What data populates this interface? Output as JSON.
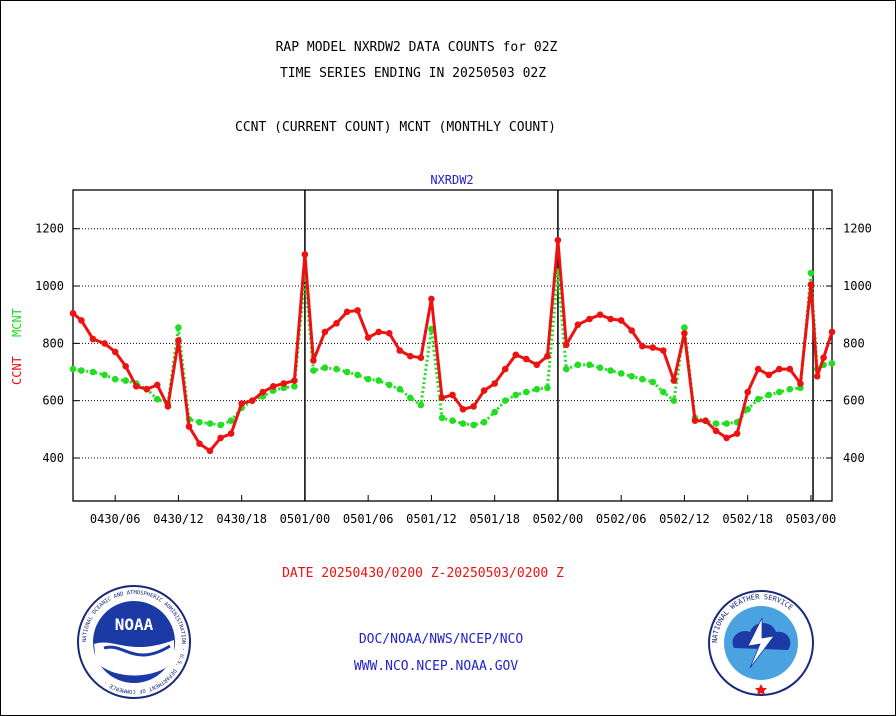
{
  "header": {
    "title_line1": "RAP MODEL NXRDW2 DATA COUNTS for 02Z",
    "title_line2": "TIME SERIES ENDING IN 20250503 02Z",
    "legend_line": "CCNT (CURRENT COUNT) MCNT (MONTHLY COUNT)"
  },
  "footer": {
    "date_range": "DATE 20250430/0200 Z-20250503/0200 Z",
    "org_path": "DOC/NOAA/NWS/NCEP/NCO",
    "website": "WWW.NCO.NCEP.NOAA.GOV",
    "noaa_logo_text": "NOAA",
    "noaa_ring_text": "NATIONAL OCEANIC AND ATMOSPHERIC ADMINISTRATION · U.S. DEPARTMENT OF COMMERCE ·",
    "nws_ring_text": "NATIONAL WEATHER SERVICE"
  },
  "colors": {
    "ccnt": "#ee1111",
    "mcnt": "#22dd22",
    "plot_title": "#2222cc",
    "date_text": "#ee1111",
    "footer_text": "#2222cc"
  },
  "chart_data": {
    "type": "line",
    "title": "NXRDW2",
    "ylabel_ccnt": "CCNT",
    "ylabel_mcnt": "MCNT",
    "xlim": [
      0,
      72
    ],
    "ylim": [
      250,
      1335
    ],
    "yticks": [
      400,
      600,
      800,
      1000,
      1200
    ],
    "ytick_labels": [
      "400",
      "600",
      "800",
      "1000",
      "1200"
    ],
    "xticks": [
      4,
      10,
      16,
      22,
      28,
      34,
      40,
      46,
      52,
      58,
      64,
      70
    ],
    "xtick_labels": [
      "0430/06",
      "0430/12",
      "0430/18",
      "0501/00",
      "0501/06",
      "0501/12",
      "0501/18",
      "0502/00",
      "0502/06",
      "0502/12",
      "0502/18",
      "0503/00"
    ],
    "day_boundaries": [
      22,
      46,
      70.2
    ],
    "grid": true,
    "series": [
      {
        "name": "CCNT",
        "color": "#ee1111",
        "x": [
          0,
          0.8,
          1.9,
          3,
          4,
          5,
          6,
          7,
          8,
          9,
          10,
          11,
          12,
          13,
          14,
          15,
          16,
          17,
          18,
          19,
          20,
          21,
          22,
          22.8,
          23.9,
          25,
          26,
          27,
          28,
          29,
          30,
          31,
          32,
          33,
          34,
          35,
          36,
          37,
          38,
          39,
          40,
          41,
          42,
          43,
          44,
          45,
          46,
          46.8,
          47.9,
          49,
          50,
          51,
          52,
          53,
          54,
          55,
          56,
          57,
          58,
          59,
          60,
          61,
          62,
          63,
          64,
          65,
          66,
          67,
          68,
          69,
          70,
          70.6,
          71.2,
          72
        ],
        "values": [
          905,
          880,
          815,
          800,
          770,
          720,
          650,
          640,
          655,
          580,
          810,
          510,
          450,
          425,
          470,
          485,
          590,
          600,
          630,
          650,
          660,
          670,
          1110,
          740,
          840,
          870,
          910,
          915,
          820,
          840,
          835,
          775,
          755,
          750,
          955,
          610,
          620,
          570,
          580,
          635,
          660,
          710,
          760,
          745,
          725,
          755,
          1160,
          795,
          865,
          885,
          900,
          885,
          880,
          845,
          790,
          785,
          775,
          670,
          835,
          530,
          530,
          495,
          470,
          485,
          630,
          710,
          690,
          710,
          710,
          660,
          1005,
          685,
          750,
          840
        ]
      },
      {
        "name": "MCNT",
        "color": "#22dd22",
        "x": [
          0,
          0.8,
          1.9,
          3,
          4,
          5,
          6,
          7,
          8,
          9,
          10,
          11,
          12,
          13,
          14,
          15,
          16,
          17,
          18,
          19,
          20,
          21,
          22,
          22.8,
          23.9,
          25,
          26,
          27,
          28,
          29,
          30,
          31,
          32,
          33,
          34,
          35,
          36,
          37,
          38,
          39,
          40,
          41,
          42,
          43,
          44,
          45,
          46,
          46.8,
          47.9,
          49,
          50,
          51,
          52,
          53,
          54,
          55,
          56,
          57,
          58,
          59,
          60,
          61,
          62,
          63,
          64,
          65,
          66,
          67,
          68,
          69,
          70,
          70.6,
          71.2,
          72
        ],
        "values": [
          710,
          705,
          700,
          690,
          675,
          670,
          660,
          640,
          605,
          590,
          855,
          535,
          525,
          520,
          515,
          530,
          575,
          600,
          615,
          635,
          645,
          650,
          1035,
          705,
          715,
          710,
          700,
          690,
          675,
          670,
          655,
          640,
          610,
          585,
          850,
          540,
          530,
          520,
          515,
          525,
          560,
          600,
          620,
          630,
          640,
          645,
          1050,
          710,
          725,
          725,
          715,
          705,
          695,
          685,
          675,
          665,
          630,
          600,
          855,
          540,
          530,
          520,
          520,
          525,
          570,
          605,
          620,
          630,
          640,
          645,
          1045,
          710,
          725,
          730
        ]
      }
    ]
  }
}
